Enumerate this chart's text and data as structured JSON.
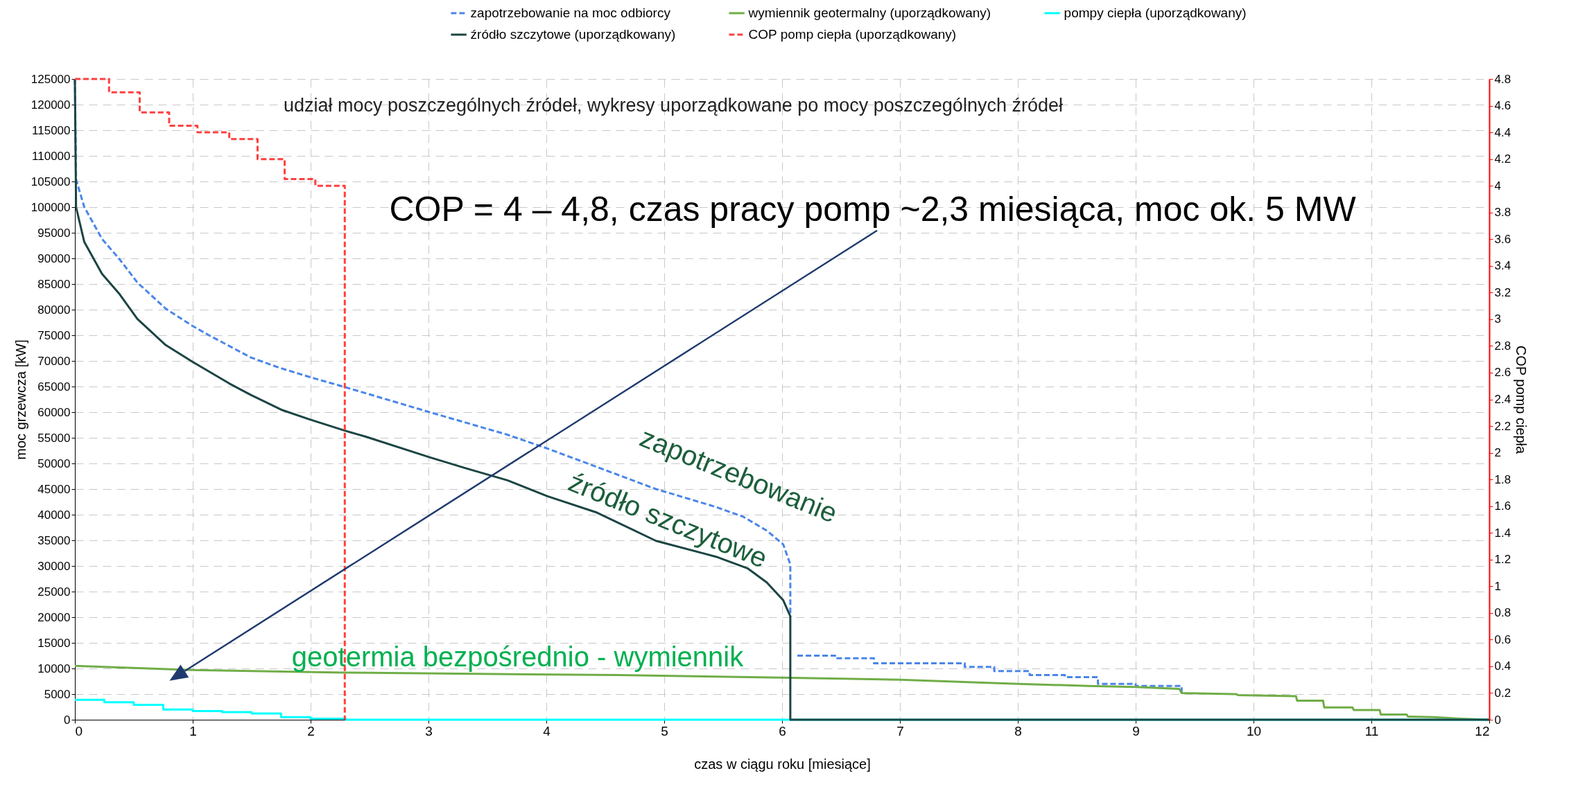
{
  "chart_data": {
    "type": "line",
    "title": "udział mocy poszczególnych źródeł, wykresy uporządkowane po mocy poszczególnych źródeł",
    "xlabel": "czas w ciągu roku [miesiące]",
    "ylabel": "moc grzewcza [kW]",
    "y2label": "COP pomp ciepła",
    "xlim": [
      0,
      12
    ],
    "xticks": [
      0,
      1,
      2,
      3,
      4,
      5,
      6,
      7,
      8,
      9,
      10,
      11,
      12
    ],
    "ylim": [
      0,
      125000
    ],
    "yticks": [
      0,
      5000,
      10000,
      15000,
      20000,
      25000,
      30000,
      35000,
      40000,
      45000,
      50000,
      55000,
      60000,
      65000,
      70000,
      75000,
      80000,
      85000,
      90000,
      95000,
      100000,
      105000,
      110000,
      115000,
      120000,
      125000
    ],
    "y2lim": [
      0,
      4.8
    ],
    "y2ticks": [
      0,
      0.2,
      0.4,
      0.6,
      0.8,
      1,
      1.2,
      1.4,
      1.6,
      1.8,
      2,
      2.2,
      2.4,
      2.6,
      2.8,
      3,
      3.2,
      3.4,
      3.6,
      3.8,
      4,
      4.2,
      4.4,
      4.6,
      4.8
    ],
    "grid": true,
    "legend": "top",
    "series": [
      {
        "name": "zapotrzebowanie na moc odbiorcy",
        "color": "#4a86e8",
        "line_style": "dashed",
        "x": [
          0,
          0.01,
          0.08,
          0.23,
          0.38,
          0.53,
          0.77,
          1.0,
          1.13,
          1.49,
          1.73,
          2.0,
          2.29,
          3.01,
          3.67,
          4.01,
          4.43,
          4.93,
          5.44,
          5.67,
          5.87,
          6.01,
          6.07,
          6.07,
          6.1,
          6.13,
          6.45,
          6.45,
          6.78,
          6.78,
          7.55,
          7.55,
          7.8,
          7.8,
          8.1,
          8.1,
          8.4,
          8.4,
          8.68,
          8.68,
          9.0,
          9.0,
          9.39,
          9.39
        ],
        "values": [
          125000,
          105400,
          100000,
          93800,
          89800,
          85300,
          80200,
          76800,
          75100,
          70700,
          68700,
          66800,
          64900,
          60000,
          55600,
          52900,
          49300,
          45000,
          41500,
          39600,
          36900,
          34200,
          30300,
          20000,
          null,
          12500,
          12500,
          12000,
          12000,
          11000,
          11000,
          10300,
          10300,
          9500,
          9500,
          8700,
          8700,
          8300,
          8300,
          7000,
          7000,
          6600,
          6600,
          5300
        ]
      },
      {
        "name": "wymiennik geotermalny (uporządkowany)",
        "color": "#70ad47",
        "line_style": "solid",
        "x": [
          0,
          1.0,
          2.29,
          4.61,
          6.0,
          7.0,
          8.0,
          8.6,
          9.0,
          9.37,
          9.39,
          9.85,
          9.87,
          10.36,
          10.37,
          10.59,
          10.6,
          10.84,
          10.85,
          11.07,
          11.08,
          11.3,
          11.31,
          11.53,
          11.76,
          12
        ],
        "values": [
          10500,
          9700,
          9200,
          8700,
          8200,
          7800,
          7000,
          6600,
          6400,
          6000,
          5200,
          5000,
          4800,
          4600,
          3700,
          3700,
          2400,
          2400,
          1900,
          1900,
          1000,
          1000,
          600,
          500,
          200,
          0
        ]
      },
      {
        "name": "pompy ciepła  (uporządkowany)",
        "color": "#00ffff",
        "type": "step",
        "line_style": "solid",
        "x": [
          0,
          0.25,
          0.5,
          0.75,
          1.0,
          1.25,
          1.5,
          1.75,
          2.0,
          2.3,
          12
        ],
        "values": [
          3900,
          3400,
          2900,
          2000,
          1700,
          1500,
          1200,
          500,
          200,
          0,
          0
        ]
      },
      {
        "name": "źródło szczytowe (uporządkowany)",
        "color": "#1b4543",
        "line_style": "solid",
        "x": [
          0,
          0.01,
          0.08,
          0.23,
          0.38,
          0.53,
          0.77,
          1.0,
          1.31,
          1.49,
          1.76,
          1.99,
          2.29,
          2.47,
          3.01,
          3.31,
          3.67,
          4.01,
          4.43,
          4.93,
          5.44,
          5.71,
          5.87,
          6.01,
          6.07,
          6.07,
          12
        ],
        "values": [
          125000,
          100000,
          93200,
          87000,
          83000,
          78200,
          73100,
          69800,
          65600,
          63400,
          60400,
          58600,
          56400,
          55200,
          51200,
          49100,
          46700,
          43600,
          40400,
          34900,
          31800,
          29500,
          26800,
          23300,
          20200,
          0,
          0
        ]
      },
      {
        "name": "COP pomp ciepła (uporządkowany)",
        "color": "#ff4040",
        "type": "step",
        "line_style": "dashed",
        "axis": "y2",
        "x": [
          0,
          0.29,
          0.55,
          0.8,
          1.04,
          1.31,
          1.55,
          1.78,
          2.04,
          2.29
        ],
        "values": [
          4.8,
          4.7,
          4.55,
          4.45,
          4.4,
          4.35,
          4.2,
          4.05,
          4.0,
          0
        ]
      }
    ],
    "annotations": [
      "COP = 4 – 4,8, czas pracy pomp ~2,3 miesiąca, moc ok. 5 MW",
      "zapotrzebowanie",
      "źródło szczytowe",
      "geotermia bezpośrednio - wymiennik"
    ]
  }
}
